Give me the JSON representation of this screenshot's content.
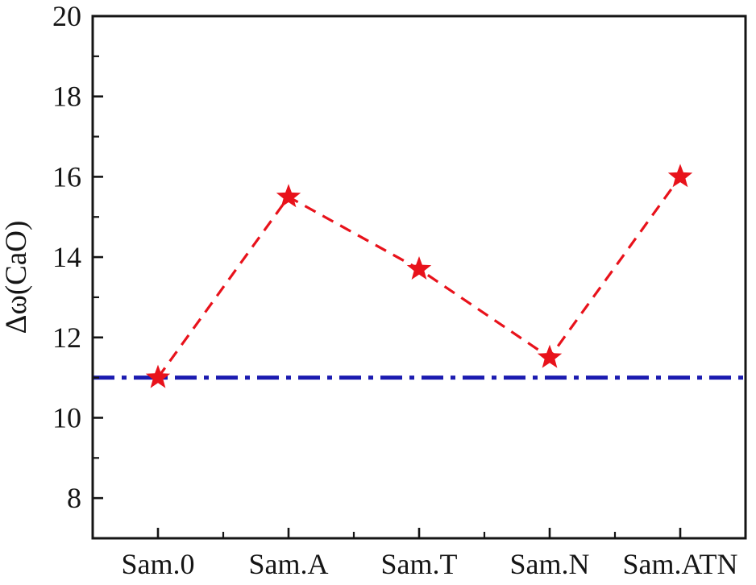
{
  "chart_data": {
    "type": "line",
    "title": "",
    "xlabel": "",
    "ylabel": "Δω(CaO)",
    "categories": [
      "Sam.0",
      "Sam.A",
      "Sam.T",
      "Sam.N",
      "Sam.ATN"
    ],
    "series": [
      {
        "name": "Δω(CaO)",
        "values": [
          11.0,
          15.5,
          13.7,
          11.5,
          16.0
        ],
        "color": "#e8121b",
        "marker": "star",
        "line_style": "dashed"
      }
    ],
    "reference_line": {
      "value": 11.0,
      "color": "#1b1bb0",
      "line_style": "dash-dot"
    },
    "ylim": [
      7,
      20
    ],
    "yticks_major": [
      8,
      10,
      12,
      14,
      16,
      18,
      20
    ],
    "yticks_minor": [
      9,
      11,
      13,
      15,
      17,
      19
    ],
    "grid": false,
    "legend": "none",
    "axis_color": "#151515"
  }
}
